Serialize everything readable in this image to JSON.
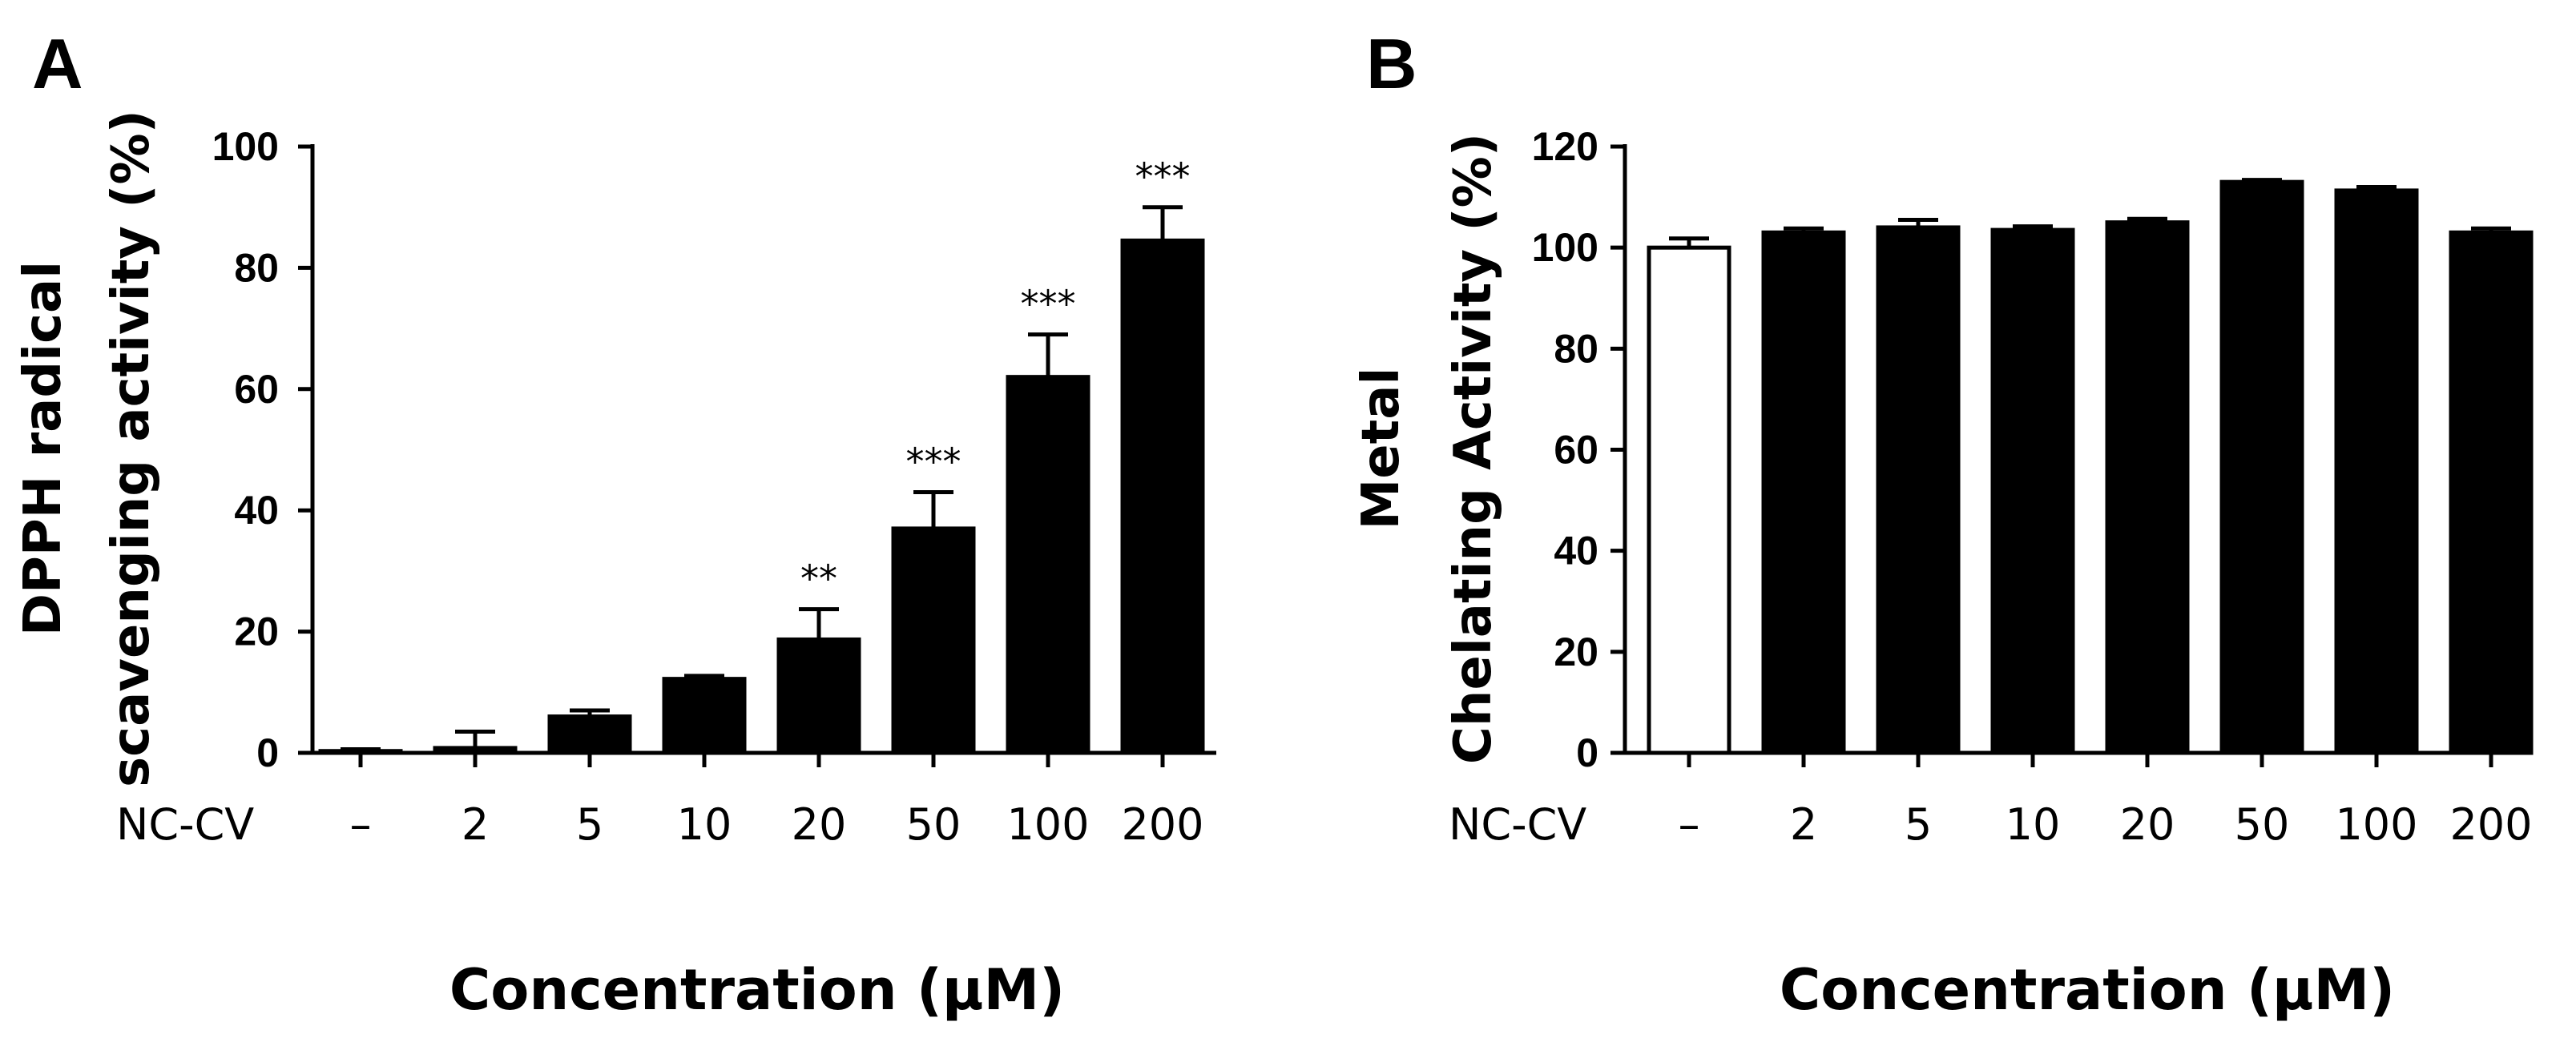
{
  "figure": {
    "row_label": "NC-CV"
  },
  "chart_data": [
    {
      "panel": "A",
      "type": "bar",
      "title": "",
      "ylabel_lines": [
        "DPPH radical",
        "scavenging activity (%)"
      ],
      "xlabel": "Concentration (μM)",
      "categories": [
        "–",
        "2",
        "5",
        "10",
        "20",
        "50",
        "100",
        "200"
      ],
      "values": [
        0.3,
        0.8,
        6,
        12.2,
        18.7,
        37,
        62,
        84.5
      ],
      "errors": [
        0.3,
        2.7,
        1.0,
        0.5,
        5.0,
        6.0,
        7.0,
        5.5
      ],
      "significance": [
        "",
        "",
        "",
        "",
        "**",
        "***",
        "***",
        "***"
      ],
      "bar_fills": [
        "#000000",
        "#000000",
        "#000000",
        "#000000",
        "#000000",
        "#000000",
        "#000000",
        "#000000"
      ],
      "ylim": [
        0,
        100
      ],
      "yticks": [
        0,
        20,
        40,
        60,
        80,
        100
      ]
    },
    {
      "panel": "B",
      "type": "bar",
      "title": "",
      "ylabel_lines": [
        "Metal",
        "Chelating Activity (%)"
      ],
      "xlabel": "Concentration (μM)",
      "categories": [
        "–",
        "2",
        "5",
        "10",
        "20",
        "50",
        "100",
        "200"
      ],
      "values": [
        100,
        103,
        104,
        103.5,
        105,
        113,
        111.3,
        103
      ],
      "errors": [
        1.8,
        0.8,
        1.5,
        0.7,
        0.7,
        0.4,
        0.7,
        0.8
      ],
      "significance": [
        "",
        "",
        "",
        "",
        "",
        "",
        "",
        ""
      ],
      "bar_fills": [
        "#ffffff",
        "#000000",
        "#000000",
        "#000000",
        "#000000",
        "#000000",
        "#000000",
        "#000000"
      ],
      "ylim": [
        0,
        120
      ],
      "yticks": [
        0,
        20,
        40,
        60,
        80,
        100,
        120
      ]
    }
  ]
}
